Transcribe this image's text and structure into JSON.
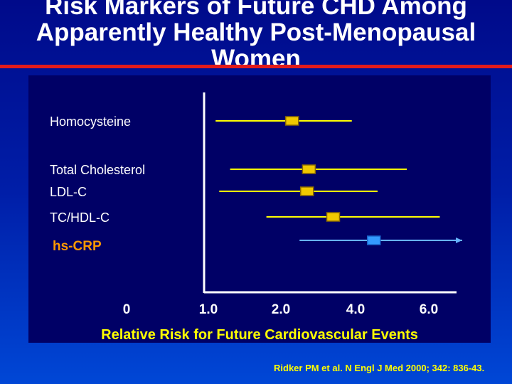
{
  "slide": {
    "title_line1": "Risk Markers of Future CHD Among",
    "title_line2": "Apparently Healthy Post-Menopausal",
    "title_line3": "Women",
    "citation": "Ridker PM et al. N Engl J Med 2000; 342: 836-43."
  },
  "colors": {
    "background_top": "#000a8a",
    "panel": "#000066",
    "accent_red": "#e21b1b",
    "marker_yellow": "#f0c800",
    "marker_blue": "#3399ff",
    "label_orange": "#ff9900",
    "text_yellow": "#ffff00"
  },
  "chart_data": {
    "type": "forest",
    "title": "Risk Markers of Future CHD Among Apparently Healthy Post-Menopausal Women",
    "xlabel": "Relative Risk for Future Cardiovascular Events",
    "ylabel": "",
    "x_ticks": [
      "0",
      "1.0",
      "2.0",
      "4.0",
      "6.0"
    ],
    "x_tick_values": [
      0,
      1,
      2,
      4,
      6
    ],
    "reference_line": 1.0,
    "rows": [
      {
        "label": "Homocysteine",
        "row": 0,
        "estimate": 2.3,
        "low": 1.1,
        "high": 3.9,
        "color": "#f0c800",
        "label_color": "#ffffff",
        "show_label": true
      },
      {
        "label": "Total Cholesterol",
        "row": 1,
        "estimate": 2.75,
        "low": 1.3,
        "high": 5.4,
        "color": "#f0c800",
        "label_color": "#ffffff",
        "show_label": true
      },
      {
        "label": "LDL-C",
        "row": 2,
        "estimate": 2.7,
        "low": 1.15,
        "high": 4.6,
        "color": "#f0c800",
        "label_color": "#ffffff",
        "show_label": true
      },
      {
        "label": "TC/HDL-C",
        "row": 3,
        "estimate": 3.4,
        "low": 1.8,
        "high": 6.3,
        "color": "#f0c800",
        "label_color": "#ffffff",
        "show_label": true
      },
      {
        "label": "hs-CRP",
        "row": 4,
        "estimate": 4.5,
        "low": 2.5,
        "high": 7.0,
        "color": "#3399ff",
        "label_color": "#ff9900",
        "show_label": true,
        "arrow": true
      }
    ]
  }
}
